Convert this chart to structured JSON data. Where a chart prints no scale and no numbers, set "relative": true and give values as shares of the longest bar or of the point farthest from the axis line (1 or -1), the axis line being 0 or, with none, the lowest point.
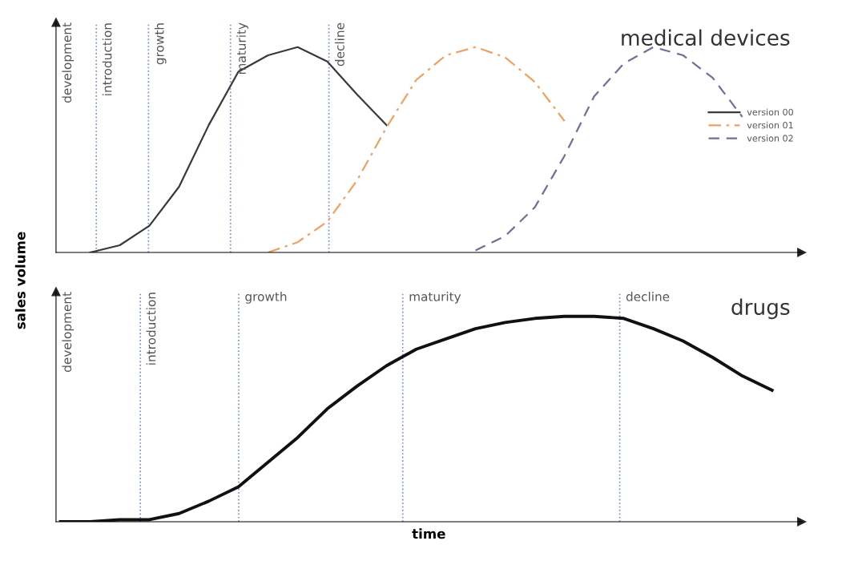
{
  "chart_data": [
    {
      "type": "line",
      "title": "medical devices",
      "ylabel": "sales volume",
      "relative": true,
      "tick_labels": false,
      "legend": "right",
      "marker": "none",
      "categories": [
        null,
        null,
        null,
        null,
        null,
        null,
        null,
        null,
        null,
        null,
        null,
        null,
        null,
        null,
        null,
        null,
        null,
        null,
        null,
        null,
        null,
        null,
        null,
        null,
        null
      ],
      "annotations": [
        "development",
        "introduction",
        "growth",
        "maturity",
        "decline"
      ],
      "series": [
        {
          "name": "version 00",
          "color": "#3a3a3a",
          "line_style": "solid",
          "values": [
            null,
            0,
            0.035,
            0.13,
            0.32,
            0.62,
            0.88,
            0.96,
            1.0,
            0.93,
            0.77,
            0.62,
            null,
            null,
            null,
            null,
            null,
            null,
            null,
            null,
            null,
            null,
            null,
            null,
            null
          ]
        },
        {
          "name": "version 01",
          "color": "#f0a060",
          "line_style": "dashdot",
          "values": [
            null,
            null,
            null,
            null,
            null,
            null,
            null,
            0,
            0.05,
            0.15,
            0.35,
            0.61,
            0.84,
            0.96,
            1.0,
            0.95,
            0.83,
            0.64,
            null,
            null,
            null,
            null,
            null,
            null,
            null
          ]
        },
        {
          "name": "version 02",
          "color": "#7a6a9a",
          "line_style": "dashed",
          "values": [
            null,
            null,
            null,
            null,
            null,
            null,
            null,
            null,
            null,
            null,
            null,
            null,
            null,
            null,
            0.01,
            0.08,
            0.22,
            0.47,
            0.76,
            0.92,
            1.0,
            0.96,
            0.85,
            0.66,
            null
          ]
        }
      ]
    },
    {
      "type": "line",
      "title": "drugs",
      "xlabel": "time",
      "relative": true,
      "tick_labels": false,
      "marker": "none",
      "categories": [
        null,
        null,
        null,
        null,
        null,
        null,
        null,
        null,
        null,
        null,
        null,
        null,
        null,
        null,
        null,
        null,
        null,
        null,
        null,
        null,
        null,
        null,
        null,
        null,
        null
      ],
      "annotations": [
        "development",
        "introduction",
        "growth",
        "maturity",
        "decline"
      ],
      "series": [
        {
          "color": "#111111",
          "line_style": "solid",
          "values": [
            0,
            0,
            0.01,
            0.01,
            0.04,
            0.1,
            0.17,
            0.29,
            0.41,
            0.55,
            0.66,
            0.76,
            0.84,
            0.89,
            0.94,
            0.97,
            0.99,
            1.0,
            1.0,
            0.99,
            0.94,
            0.88,
            0.8,
            0.71,
            0.64
          ]
        }
      ]
    }
  ]
}
